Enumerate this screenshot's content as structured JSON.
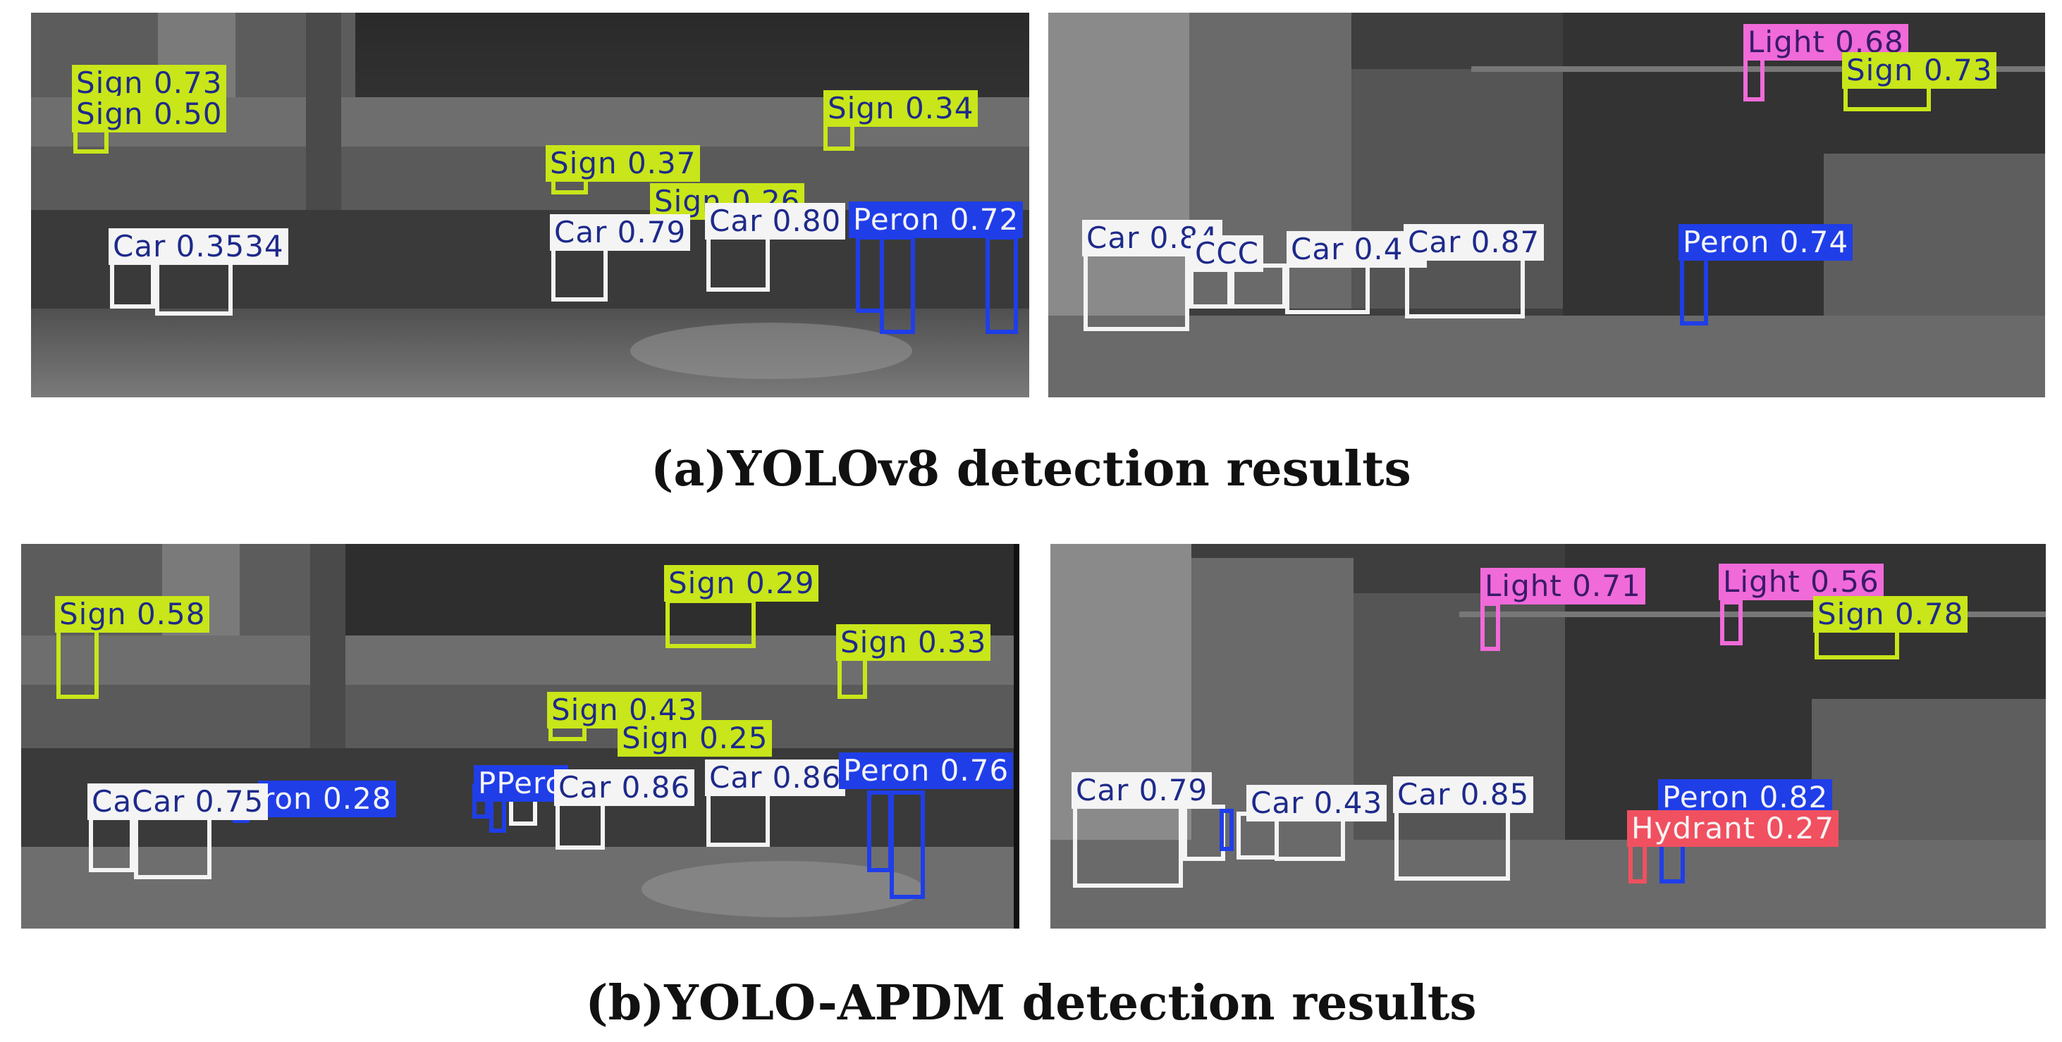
{
  "captions": {
    "a": "(a)YOLOv8 detection results",
    "b": "(b)YOLO-APDM detection results"
  },
  "class_colors": {
    "Sign": {
      "bg": "#c8e619",
      "fg": "#1e2a8a",
      "box": "#c8e619"
    },
    "Car": {
      "bg": "#f4f4f4",
      "fg": "#1e2a8a",
      "box": "#f4f4f4"
    },
    "Peron": {
      "bg": "#1f3ee8",
      "fg": "#f4f4f4",
      "box": "#1f3ee8"
    },
    "Light": {
      "bg": "#f06ad9",
      "fg": "#3a1a6a",
      "box": "#f06ad9"
    },
    "Hydrant": {
      "bg": "#f05060",
      "fg": "#f4f4f4",
      "box": "#f05060"
    }
  },
  "panels": {
    "a_left": {
      "labels": [
        "Sign 0.73",
        "Sign 0.50",
        "Sign 0.34",
        "Sign 0.37",
        "Sign 0.26",
        "Car 0.3534",
        "Car 0.79",
        "Car 0.80",
        "Peron 0.72"
      ]
    },
    "a_right": {
      "labels": [
        "Light 0.68",
        "Sign 0.73",
        "Car 0.84",
        "Car 0.87",
        "Peron 0.74",
        "CCC",
        "Car 0.43"
      ]
    },
    "b_left": {
      "labels": [
        "Sign 0.58",
        "Sign 0.29",
        "Sign 0.33",
        "Sign 0.43",
        "Sign 0.25",
        "CaCar 0.75",
        "ron 0.28",
        "PPero",
        "Car 0.86",
        "Car 0.86",
        "Peron 0.76"
      ]
    },
    "b_right": {
      "labels": [
        "Light 0.71",
        "Light 0.56",
        "Sign 0.78",
        "Car 0.79",
        "Car 0.43",
        "Car 0.85",
        "Peron 0.82",
        "Hydrant 0.27"
      ]
    }
  }
}
